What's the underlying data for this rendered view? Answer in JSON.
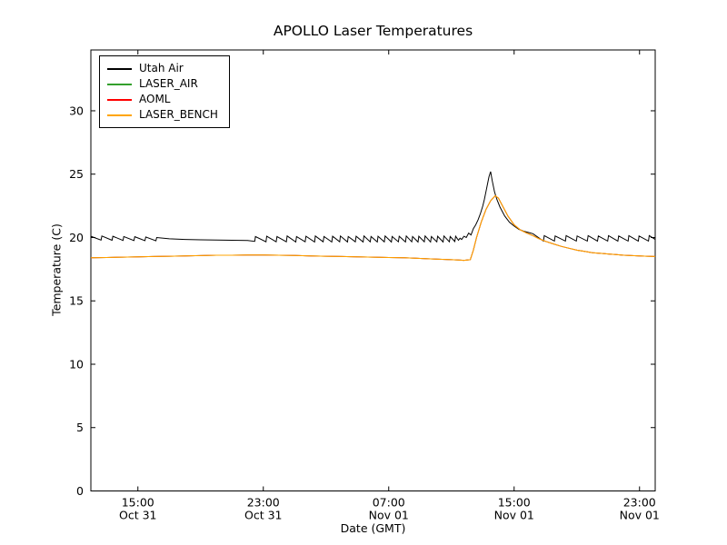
{
  "chart_data": {
    "type": "line",
    "title": "APOLLO Laser Temperatures",
    "xlabel": "Date (GMT)",
    "ylabel": "Temperature (C)",
    "x_encoding": "hours since Oct 31 00:00 GMT",
    "xlim": [
      12,
      48
    ],
    "ylim": [
      0,
      34.8
    ],
    "yticks": [
      0,
      5,
      10,
      15,
      20,
      25,
      30
    ],
    "xticks": [
      {
        "x": 15,
        "time": "15:00",
        "date": "Oct 31"
      },
      {
        "x": 23,
        "time": "23:00",
        "date": "Oct 31"
      },
      {
        "x": 31,
        "time": "07:00",
        "date": "Nov 01"
      },
      {
        "x": 39,
        "time": "15:00",
        "date": "Nov 01"
      },
      {
        "x": 47,
        "time": "23:00",
        "date": "Nov 01"
      }
    ],
    "grid": false,
    "legend_position": "upper left",
    "series": [
      {
        "name": "Utah Air",
        "color": "#000000",
        "points": [
          [
            12.0,
            20.1
          ],
          [
            12.65,
            19.8
          ],
          [
            12.7,
            20.12
          ],
          [
            13.35,
            19.78
          ],
          [
            13.4,
            20.1
          ],
          [
            14.05,
            19.77
          ],
          [
            14.1,
            20.08
          ],
          [
            14.75,
            19.76
          ],
          [
            14.8,
            20.06
          ],
          [
            15.45,
            19.75
          ],
          [
            15.5,
            20.04
          ],
          [
            16.15,
            19.74
          ],
          [
            16.2,
            20.0
          ],
          [
            17.0,
            19.9
          ],
          [
            18.0,
            19.85
          ],
          [
            19.0,
            19.82
          ],
          [
            20.0,
            19.8
          ],
          [
            21.0,
            19.78
          ],
          [
            22.0,
            19.76
          ],
          [
            22.45,
            19.7
          ],
          [
            22.5,
            20.08
          ],
          [
            23.17,
            19.66
          ],
          [
            23.22,
            20.1
          ],
          [
            23.82,
            19.66
          ],
          [
            23.87,
            20.08
          ],
          [
            24.47,
            19.66
          ],
          [
            24.52,
            20.12
          ],
          [
            25.07,
            19.65
          ],
          [
            25.12,
            20.08
          ],
          [
            25.67,
            19.66
          ],
          [
            25.72,
            20.1
          ],
          [
            26.27,
            19.65
          ],
          [
            26.32,
            20.12
          ],
          [
            26.82,
            19.66
          ],
          [
            26.87,
            20.08
          ],
          [
            27.37,
            19.65
          ],
          [
            27.42,
            20.1
          ],
          [
            27.87,
            19.66
          ],
          [
            27.92,
            20.12
          ],
          [
            28.37,
            19.65
          ],
          [
            28.42,
            20.08
          ],
          [
            28.87,
            19.66
          ],
          [
            28.92,
            20.1
          ],
          [
            29.37,
            19.65
          ],
          [
            29.42,
            20.12
          ],
          [
            29.82,
            19.66
          ],
          [
            29.87,
            20.08
          ],
          [
            30.27,
            19.65
          ],
          [
            30.32,
            20.1
          ],
          [
            30.72,
            19.66
          ],
          [
            30.77,
            20.12
          ],
          [
            31.17,
            19.65
          ],
          [
            31.22,
            20.08
          ],
          [
            31.62,
            19.66
          ],
          [
            31.67,
            20.1
          ],
          [
            32.07,
            19.65
          ],
          [
            32.12,
            20.12
          ],
          [
            32.47,
            19.66
          ],
          [
            32.52,
            20.08
          ],
          [
            32.87,
            19.65
          ],
          [
            32.92,
            20.1
          ],
          [
            33.27,
            19.66
          ],
          [
            33.32,
            20.12
          ],
          [
            33.67,
            19.65
          ],
          [
            33.72,
            20.08
          ],
          [
            34.07,
            19.66
          ],
          [
            34.12,
            20.1
          ],
          [
            34.47,
            19.65
          ],
          [
            34.52,
            20.12
          ],
          [
            34.87,
            19.66
          ],
          [
            34.92,
            20.08
          ],
          [
            35.22,
            19.68
          ],
          [
            35.27,
            20.1
          ],
          [
            35.45,
            19.78
          ],
          [
            35.55,
            19.95
          ],
          [
            35.65,
            19.85
          ],
          [
            35.8,
            20.1
          ],
          [
            35.95,
            20.0
          ],
          [
            36.1,
            20.35
          ],
          [
            36.25,
            20.2
          ],
          [
            36.4,
            20.7
          ],
          [
            36.55,
            21.0
          ],
          [
            36.7,
            21.4
          ],
          [
            36.85,
            21.9
          ],
          [
            37.0,
            22.5
          ],
          [
            37.1,
            23.0
          ],
          [
            37.2,
            23.6
          ],
          [
            37.3,
            24.2
          ],
          [
            37.4,
            24.8
          ],
          [
            37.5,
            25.2
          ],
          [
            37.6,
            24.5
          ],
          [
            37.75,
            23.6
          ],
          [
            37.9,
            23.0
          ],
          [
            38.1,
            22.4
          ],
          [
            38.4,
            21.7
          ],
          [
            38.7,
            21.2
          ],
          [
            39.0,
            20.9
          ],
          [
            39.3,
            20.65
          ],
          [
            39.6,
            20.5
          ],
          [
            39.9,
            20.4
          ],
          [
            40.2,
            20.3
          ],
          [
            40.87,
            19.72
          ],
          [
            40.92,
            20.15
          ],
          [
            41.57,
            19.72
          ],
          [
            41.62,
            20.12
          ],
          [
            42.27,
            19.72
          ],
          [
            42.32,
            20.15
          ],
          [
            42.97,
            19.72
          ],
          [
            43.02,
            20.12
          ],
          [
            43.67,
            19.72
          ],
          [
            43.72,
            20.15
          ],
          [
            44.32,
            19.72
          ],
          [
            44.37,
            20.12
          ],
          [
            44.97,
            19.72
          ],
          [
            45.02,
            20.15
          ],
          [
            45.62,
            19.72
          ],
          [
            45.67,
            20.12
          ],
          [
            46.27,
            19.72
          ],
          [
            46.32,
            20.15
          ],
          [
            46.92,
            19.72
          ],
          [
            46.97,
            20.12
          ],
          [
            47.57,
            19.72
          ],
          [
            47.62,
            20.15
          ],
          [
            48.0,
            19.85
          ]
        ]
      },
      {
        "name": "LASER_AIR",
        "color": "#33a02c",
        "points": [
          [
            12.0,
            18.4
          ],
          [
            13.0,
            18.42
          ],
          [
            14.0,
            18.45
          ],
          [
            15.0,
            18.47
          ],
          [
            16.0,
            18.5
          ],
          [
            17.0,
            18.52
          ],
          [
            18.0,
            18.55
          ],
          [
            19.0,
            18.57
          ],
          [
            20.0,
            18.6
          ],
          [
            21.0,
            18.6
          ],
          [
            22.0,
            18.62
          ],
          [
            23.0,
            18.62
          ],
          [
            24.0,
            18.6
          ],
          [
            25.0,
            18.58
          ],
          [
            26.0,
            18.55
          ],
          [
            27.0,
            18.52
          ],
          [
            28.0,
            18.5
          ],
          [
            29.0,
            18.47
          ],
          [
            30.0,
            18.45
          ],
          [
            31.0,
            18.42
          ],
          [
            32.0,
            18.4
          ],
          [
            33.0,
            18.35
          ],
          [
            34.0,
            18.3
          ],
          [
            35.0,
            18.25
          ],
          [
            35.8,
            18.2
          ],
          [
            36.2,
            18.25
          ],
          [
            36.4,
            19.0
          ],
          [
            36.6,
            20.0
          ],
          [
            36.9,
            21.2
          ],
          [
            37.2,
            22.2
          ],
          [
            37.5,
            22.9
          ],
          [
            37.8,
            23.3
          ],
          [
            38.0,
            23.1
          ],
          [
            38.3,
            22.4
          ],
          [
            38.6,
            21.7
          ],
          [
            39.0,
            21.0
          ],
          [
            39.4,
            20.6
          ],
          [
            39.8,
            20.35
          ],
          [
            40.2,
            20.15
          ],
          [
            40.6,
            19.9
          ],
          [
            41.0,
            19.7
          ],
          [
            41.5,
            19.5
          ],
          [
            42.0,
            19.3
          ],
          [
            42.5,
            19.15
          ],
          [
            43.0,
            19.0
          ],
          [
            43.5,
            18.9
          ],
          [
            44.0,
            18.8
          ],
          [
            44.5,
            18.75
          ],
          [
            45.0,
            18.7
          ],
          [
            45.5,
            18.65
          ],
          [
            46.0,
            18.6
          ],
          [
            46.5,
            18.57
          ],
          [
            47.0,
            18.55
          ],
          [
            47.5,
            18.52
          ],
          [
            48.0,
            18.5
          ]
        ]
      },
      {
        "name": "AOML",
        "color": "#ff0000",
        "points": [
          [
            12.0,
            18.4
          ],
          [
            13.0,
            18.42
          ],
          [
            14.0,
            18.45
          ],
          [
            15.0,
            18.47
          ],
          [
            16.0,
            18.5
          ],
          [
            17.0,
            18.52
          ],
          [
            18.0,
            18.55
          ],
          [
            19.0,
            18.57
          ],
          [
            20.0,
            18.6
          ],
          [
            21.0,
            18.6
          ],
          [
            22.0,
            18.62
          ],
          [
            23.0,
            18.62
          ],
          [
            24.0,
            18.6
          ],
          [
            25.0,
            18.58
          ],
          [
            26.0,
            18.55
          ],
          [
            27.0,
            18.52
          ],
          [
            28.0,
            18.5
          ],
          [
            29.0,
            18.47
          ],
          [
            30.0,
            18.45
          ],
          [
            31.0,
            18.42
          ],
          [
            32.0,
            18.4
          ],
          [
            33.0,
            18.35
          ],
          [
            34.0,
            18.3
          ],
          [
            35.0,
            18.25
          ],
          [
            35.8,
            18.2
          ],
          [
            36.2,
            18.25
          ],
          [
            36.4,
            19.0
          ],
          [
            36.6,
            20.0
          ],
          [
            36.9,
            21.2
          ],
          [
            37.2,
            22.2
          ],
          [
            37.5,
            22.9
          ],
          [
            37.8,
            23.3
          ],
          [
            38.0,
            23.1
          ],
          [
            38.3,
            22.4
          ],
          [
            38.6,
            21.7
          ],
          [
            39.0,
            21.0
          ],
          [
            39.4,
            20.6
          ],
          [
            39.8,
            20.35
          ],
          [
            40.2,
            20.15
          ],
          [
            40.6,
            19.9
          ],
          [
            41.0,
            19.7
          ],
          [
            41.5,
            19.5
          ],
          [
            42.0,
            19.3
          ],
          [
            42.5,
            19.15
          ],
          [
            43.0,
            19.0
          ],
          [
            43.5,
            18.9
          ],
          [
            44.0,
            18.8
          ],
          [
            44.5,
            18.75
          ],
          [
            45.0,
            18.7
          ],
          [
            45.5,
            18.65
          ],
          [
            46.0,
            18.6
          ],
          [
            46.5,
            18.57
          ],
          [
            47.0,
            18.55
          ],
          [
            47.5,
            18.52
          ],
          [
            48.0,
            18.5
          ]
        ]
      },
      {
        "name": "LASER_BENCH",
        "color": "#ffa500",
        "points": [
          [
            12.0,
            18.4
          ],
          [
            13.0,
            18.42
          ],
          [
            14.0,
            18.45
          ],
          [
            15.0,
            18.47
          ],
          [
            16.0,
            18.5
          ],
          [
            17.0,
            18.52
          ],
          [
            18.0,
            18.55
          ],
          [
            19.0,
            18.57
          ],
          [
            20.0,
            18.6
          ],
          [
            21.0,
            18.6
          ],
          [
            22.0,
            18.62
          ],
          [
            23.0,
            18.62
          ],
          [
            24.0,
            18.6
          ],
          [
            25.0,
            18.58
          ],
          [
            26.0,
            18.55
          ],
          [
            27.0,
            18.52
          ],
          [
            28.0,
            18.5
          ],
          [
            29.0,
            18.47
          ],
          [
            30.0,
            18.45
          ],
          [
            31.0,
            18.42
          ],
          [
            32.0,
            18.4
          ],
          [
            33.0,
            18.35
          ],
          [
            34.0,
            18.3
          ],
          [
            35.0,
            18.25
          ],
          [
            35.8,
            18.2
          ],
          [
            36.2,
            18.25
          ],
          [
            36.4,
            19.0
          ],
          [
            36.6,
            20.0
          ],
          [
            36.9,
            21.2
          ],
          [
            37.2,
            22.2
          ],
          [
            37.5,
            22.9
          ],
          [
            37.8,
            23.3
          ],
          [
            38.0,
            23.1
          ],
          [
            38.3,
            22.4
          ],
          [
            38.6,
            21.7
          ],
          [
            39.0,
            21.0
          ],
          [
            39.4,
            20.6
          ],
          [
            39.8,
            20.35
          ],
          [
            40.2,
            20.15
          ],
          [
            40.6,
            19.9
          ],
          [
            41.0,
            19.7
          ],
          [
            41.5,
            19.5
          ],
          [
            42.0,
            19.3
          ],
          [
            42.5,
            19.15
          ],
          [
            43.0,
            19.0
          ],
          [
            43.5,
            18.9
          ],
          [
            44.0,
            18.8
          ],
          [
            44.5,
            18.75
          ],
          [
            45.0,
            18.7
          ],
          [
            45.5,
            18.65
          ],
          [
            46.0,
            18.6
          ],
          [
            46.5,
            18.57
          ],
          [
            47.0,
            18.55
          ],
          [
            47.5,
            18.52
          ],
          [
            48.0,
            18.5
          ]
        ]
      }
    ]
  }
}
